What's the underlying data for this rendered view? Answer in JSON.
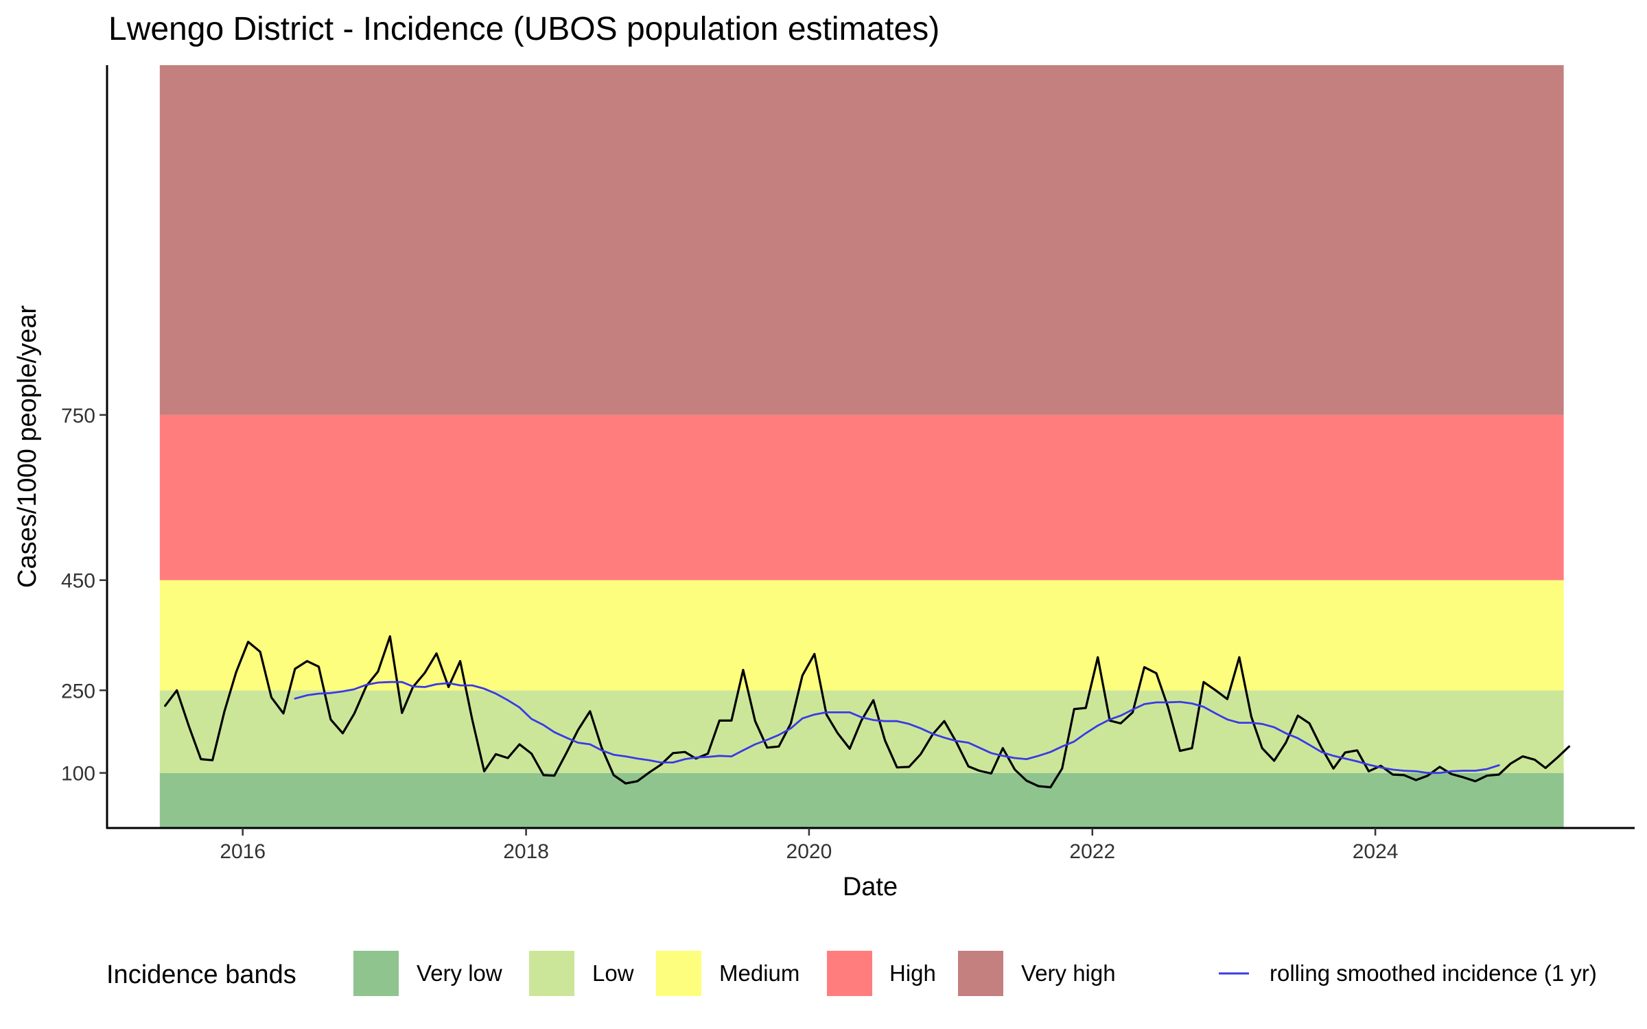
{
  "chart_data": {
    "type": "line",
    "title": "Lwengo District - Incidence (UBOS population estimates)",
    "xlabel": "Date",
    "ylabel": "Cases/1000 people/year",
    "x_range": [
      "2015-01-16",
      "2025-10-31"
    ],
    "ylim": [
      0,
      1385
    ],
    "x_ticks": [
      {
        "label": "2016",
        "date": "2016-01-01"
      },
      {
        "label": "2018",
        "date": "2018-01-01"
      },
      {
        "label": "2020",
        "date": "2020-01-01"
      },
      {
        "label": "2022",
        "date": "2022-01-01"
      },
      {
        "label": "2024",
        "date": "2024-01-01"
      }
    ],
    "y_ticks": [
      100,
      250,
      450,
      750
    ],
    "grid": false,
    "legend_position": "bottom",
    "legend_title": "Incidence bands",
    "bands": [
      {
        "name": "Very low",
        "from": 0,
        "to": 100,
        "color": "#8fc48f"
      },
      {
        "name": "Low",
        "from": 100,
        "to": 250,
        "color": "#cce699"
      },
      {
        "name": "Medium",
        "from": 250,
        "to": 450,
        "color": "#fdfd7e"
      },
      {
        "name": "High",
        "from": 450,
        "to": 750,
        "color": "#ff7d7d"
      },
      {
        "name": "Very high",
        "from": 750,
        "to": 1385,
        "color": "#c47f7f"
      }
    ],
    "band_x_range": [
      "2015-06-01",
      "2025-05-01"
    ],
    "series": [
      {
        "key": "monthly",
        "color": "#000000",
        "start": "2015-06",
        "values": [
          222,
          250,
          185,
          125,
          123,
          212,
          283,
          338,
          320,
          237,
          208,
          289,
          303,
          293,
          197,
          172,
          208,
          258,
          284,
          348,
          209,
          256,
          282,
          317,
          256,
          303,
          197,
          103,
          134,
          127,
          152,
          135,
          96,
          95,
          136,
          178,
          212,
          146,
          96,
          81,
          85,
          101,
          115,
          136,
          138,
          126,
          135,
          195,
          195,
          287,
          194,
          146,
          148,
          190,
          277,
          316,
          206,
          172,
          144,
          195,
          232,
          159,
          110,
          111,
          134,
          170,
          194,
          156,
          112,
          104,
          99,
          145,
          106,
          86,
          76,
          74,
          108,
          216,
          218,
          310,
          195,
          190,
          210,
          292,
          281,
          220,
          140,
          145,
          265,
          250,
          234,
          310,
          202,
          145,
          122,
          155,
          204,
          190,
          146,
          108,
          137,
          141,
          103,
          113,
          97,
          96,
          87,
          95,
          111,
          98,
          92,
          85,
          95,
          97,
          117,
          130,
          124,
          109,
          128,
          148
        ]
      },
      {
        "key": "rolling",
        "name": "rolling smoothed incidence (1 yr)",
        "color": "#3a3ae6",
        "start": "2016-05",
        "values": [
          235,
          241,
          244,
          245,
          248,
          252,
          260,
          264,
          265,
          265,
          257,
          256,
          261,
          263,
          259,
          259,
          253,
          244,
          232,
          219,
          198,
          187,
          174,
          164,
          155,
          152,
          141,
          133,
          130,
          126,
          123,
          119,
          119,
          125,
          128,
          129,
          131,
          130,
          141,
          152,
          160,
          169,
          181,
          199,
          206,
          210,
          210,
          210,
          201,
          196,
          194,
          194,
          189,
          181,
          171,
          164,
          158,
          155,
          146,
          136,
          131,
          127,
          125,
          131,
          138,
          148,
          157,
          172,
          186,
          197,
          204,
          215,
          225,
          228,
          228,
          229,
          226,
          220,
          208,
          197,
          191,
          191,
          189,
          183,
          172,
          163,
          151,
          138,
          131,
          126,
          121,
          115,
          110,
          106,
          104,
          103,
          100,
          100,
          103,
          104,
          104,
          107,
          114
        ]
      }
    ]
  }
}
